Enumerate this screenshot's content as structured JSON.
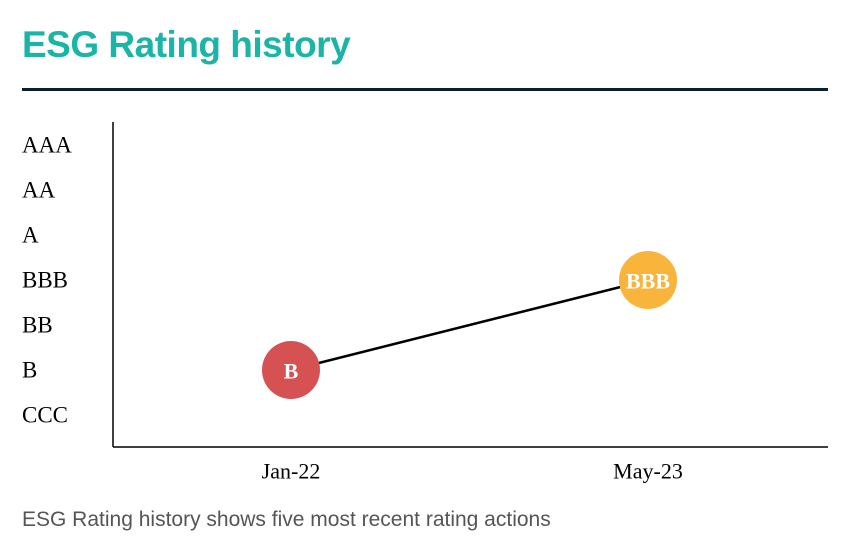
{
  "header": {
    "title": "ESG Rating history"
  },
  "caption": "ESG Rating history shows five most recent rating actions",
  "colors": {
    "title": "#1ab5a7",
    "rule": "#0b1f33",
    "axis": "#000000",
    "line": "#000000"
  },
  "chart_data": {
    "type": "line",
    "title": "ESG Rating history",
    "xlabel": "",
    "ylabel": "",
    "y_categories": [
      "AAA",
      "AA",
      "A",
      "BBB",
      "BB",
      "B",
      "CCC"
    ],
    "x": [
      "Jan-22",
      "May-23"
    ],
    "series": [
      {
        "points": [
          {
            "x": "Jan-22",
            "y": "B",
            "label": "B",
            "color": "#d65151"
          },
          {
            "x": "May-23",
            "y": "BBB",
            "label": "BBB",
            "color": "#f8b43b"
          }
        ]
      }
    ],
    "grid": false,
    "legend": "none"
  }
}
